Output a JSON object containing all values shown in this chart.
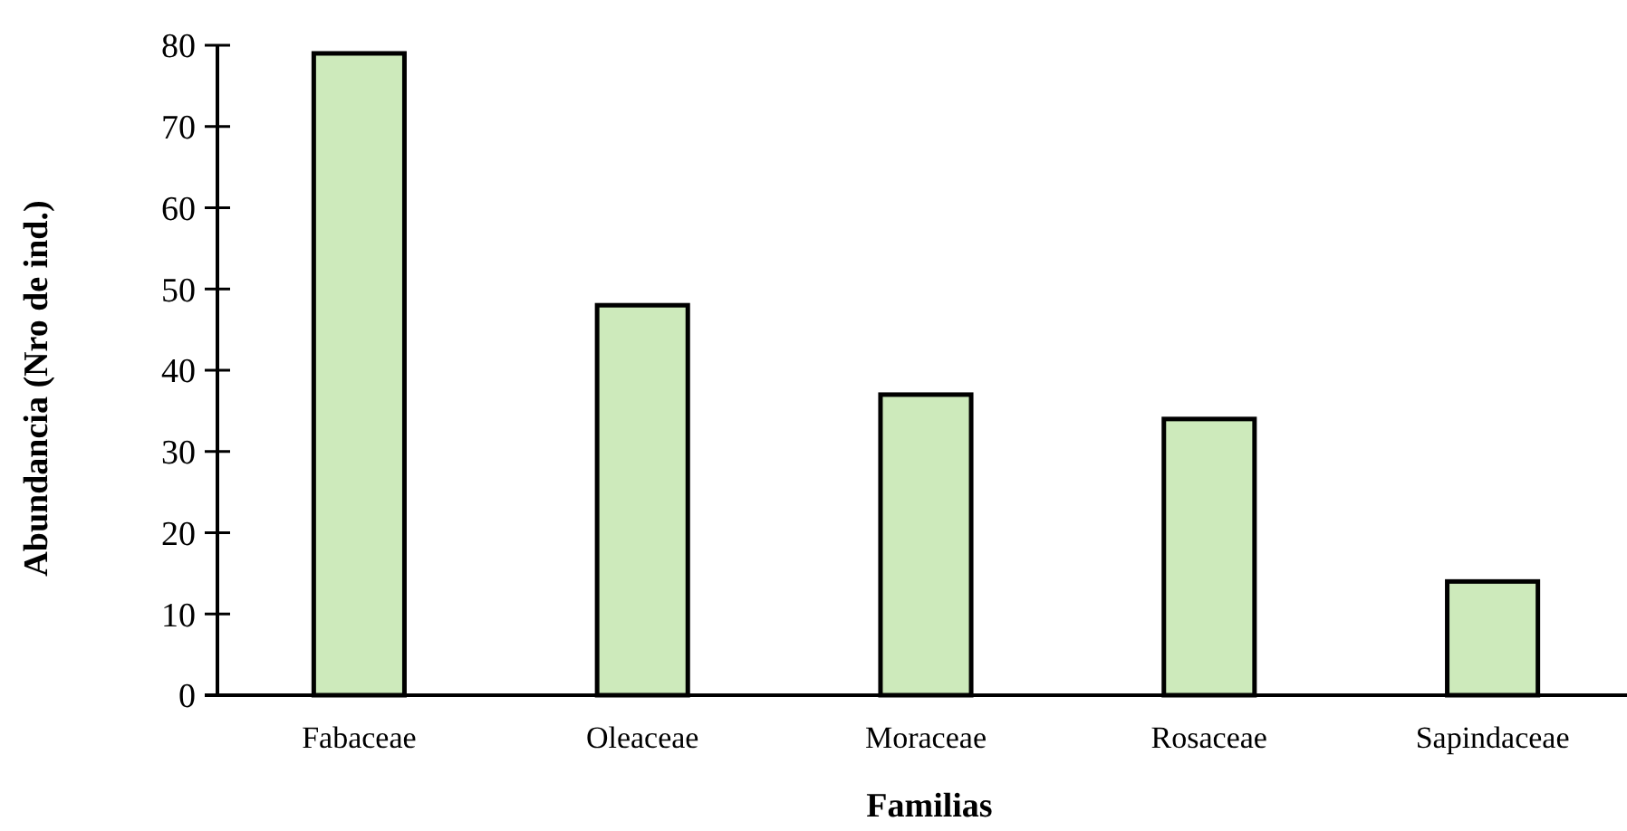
{
  "chart_data": {
    "type": "bar",
    "xlabel": "Familias",
    "ylabel": "Abundancia (Nro de ind.)",
    "categories": [
      "Fabaceae",
      "Oleaceae",
      "Moraceae",
      "Rosaceae",
      "Sapindaceae"
    ],
    "values": [
      79,
      48,
      37,
      34,
      14
    ],
    "color": "#cdeabb",
    "ylim": [
      0,
      80
    ],
    "yticks": [
      0,
      10,
      20,
      30,
      40,
      50,
      60,
      70,
      80
    ],
    "grid": false
  }
}
